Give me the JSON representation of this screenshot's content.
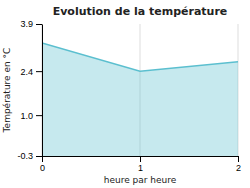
{
  "chart_data": {
    "type": "area",
    "title": "Evolution de la température",
    "xlabel": "heure par heure",
    "ylabel": "Température en °C",
    "x": [
      0,
      1,
      2
    ],
    "values": [
      3.3,
      2.4,
      2.7
    ],
    "color": "#5bbfcf",
    "xlim": [
      0,
      2
    ],
    "ylim": [
      -0.3,
      3.9
    ],
    "xticks": [
      0,
      1,
      2
    ],
    "yticks": [
      -0.3,
      {
        "value": 1.0,
        "label": "1.0"
      },
      2.4,
      3.9
    ],
    "grid": "x"
  }
}
